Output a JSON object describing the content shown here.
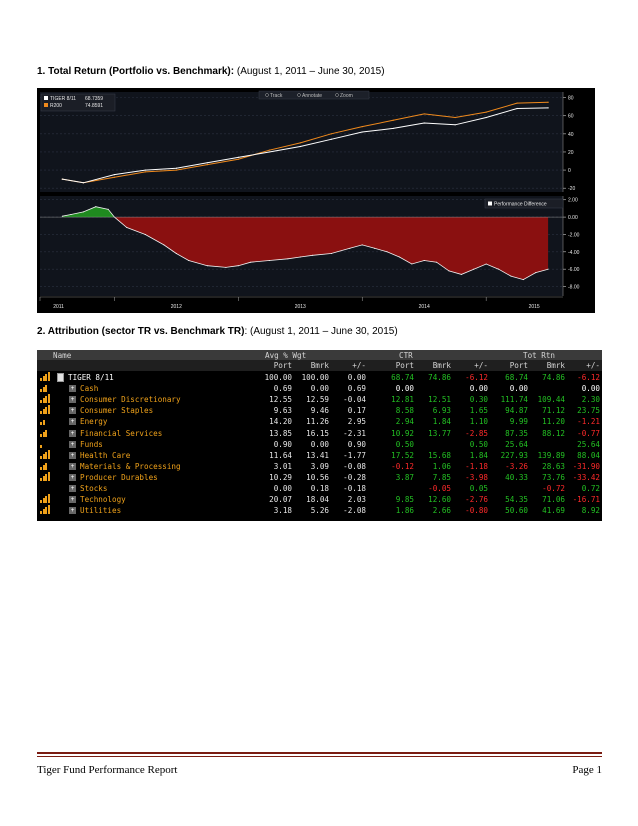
{
  "section1": {
    "number": "1.",
    "title": "Total Return (Portfolio vs. Benchmark):",
    "period": "(August 1, 2011 – June 30, 2015)"
  },
  "section2": {
    "number": "2",
    "title": ". Attribution (sector TR vs. Benchmark TR)",
    "period": ": (August 1, 2011 – June 30, 2015)"
  },
  "chart_data": [
    {
      "type": "line",
      "legend": [
        {
          "name": "TIGER 8/11",
          "value": "68.7359",
          "color": "#ffffff"
        },
        {
          "name": "R200",
          "value": "74.8591",
          "color": "#f08a1c"
        }
      ],
      "toolbar": [
        "Track",
        "Annotate",
        "Zoom"
      ],
      "x_ticks": [
        "2011",
        "2012",
        "2013",
        "2014",
        "2015"
      ],
      "y_ticks": [
        "80",
        "60",
        "40",
        "20",
        "0",
        "-20"
      ],
      "ylim": [
        -22,
        84
      ],
      "x": [
        2011.58,
        2011.75,
        2012.0,
        2012.25,
        2012.5,
        2012.75,
        2013.0,
        2013.25,
        2013.5,
        2013.75,
        2014.0,
        2014.25,
        2014.5,
        2014.75,
        2015.0,
        2015.25,
        2015.5
      ],
      "series": [
        {
          "name": "TIGER 8/11",
          "values": [
            -10,
            -14,
            -5,
            0,
            2,
            8,
            14,
            20,
            26,
            34,
            42,
            46,
            52,
            50,
            58,
            68,
            68.7
          ]
        },
        {
          "name": "R200",
          "values": [
            -10,
            -14,
            -8,
            -2,
            0,
            6,
            12,
            22,
            30,
            40,
            48,
            55,
            62,
            58,
            64,
            74,
            74.9
          ]
        }
      ]
    },
    {
      "type": "area",
      "legend": [
        {
          "name": "Performance Difference",
          "color": "#ffffff"
        }
      ],
      "y_ticks": [
        "2.00",
        "0.00",
        "-2.00",
        "-4.00",
        "-6.00",
        "-8.00"
      ],
      "ylim": [
        -8.4,
        2.2
      ],
      "x": [
        2011.58,
        2011.65,
        2011.75,
        2011.85,
        2011.95,
        2012.0,
        2012.1,
        2012.25,
        2012.4,
        2012.5,
        2012.6,
        2012.75,
        2012.9,
        2013.0,
        2013.1,
        2013.25,
        2013.4,
        2013.5,
        2013.6,
        2013.75,
        2013.9,
        2014.0,
        2014.1,
        2014.2,
        2014.3,
        2014.4,
        2014.5,
        2014.6,
        2014.7,
        2014.8,
        2014.9,
        2015.0,
        2015.1,
        2015.2,
        2015.3,
        2015.4,
        2015.5
      ],
      "values": [
        0.1,
        0.3,
        0.6,
        1.2,
        0.9,
        0.0,
        -1.2,
        -2.0,
        -3.2,
        -4.2,
        -5.0,
        -5.6,
        -5.8,
        -5.6,
        -5.2,
        -5.0,
        -4.8,
        -4.6,
        -4.4,
        -4.2,
        -3.6,
        -3.2,
        -3.6,
        -4.0,
        -4.6,
        -5.4,
        -5.0,
        -5.2,
        -6.2,
        -6.6,
        -6.0,
        -5.4,
        -6.0,
        -6.8,
        -7.2,
        -6.4,
        -6.0
      ]
    }
  ],
  "table": {
    "group_headers": [
      "Name",
      "Avg % Wgt",
      "CTR",
      "Tot Rtn"
    ],
    "sub_headers": [
      "Port",
      "Bmrk",
      "+/-",
      "Port",
      "Bmrk",
      "+/-",
      "Port",
      "Bmrk",
      "+/-"
    ],
    "rows": [
      {
        "name": "TIGER 8/11",
        "bars": 4,
        "top": true,
        "vals": [
          "100.00",
          "100.00",
          "0.00",
          "68.74",
          "74.86",
          "-6.12",
          "68.74",
          "74.86",
          "-6.12"
        ]
      },
      {
        "name": "Cash",
        "bars": 3,
        "vals": [
          "0.69",
          "0.00",
          "0.69",
          "0.00",
          "",
          "0.00",
          "0.00",
          "",
          "0.00"
        ]
      },
      {
        "name": "Consumer Discretionary",
        "bars": 4,
        "vals": [
          "12.55",
          "12.59",
          "-0.04",
          "12.81",
          "12.51",
          "0.30",
          "111.74",
          "109.44",
          "2.30"
        ]
      },
      {
        "name": "Consumer Staples",
        "bars": 4,
        "vals": [
          "9.63",
          "9.46",
          "0.17",
          "8.58",
          "6.93",
          "1.65",
          "94.87",
          "71.12",
          "23.75"
        ]
      },
      {
        "name": "Energy",
        "bars": 2,
        "vals": [
          "14.20",
          "11.26",
          "2.95",
          "2.94",
          "1.84",
          "1.10",
          "9.99",
          "11.20",
          "-1.21"
        ]
      },
      {
        "name": "Financial Services",
        "bars": 3,
        "vals": [
          "13.85",
          "16.15",
          "-2.31",
          "10.92",
          "13.77",
          "-2.85",
          "87.35",
          "88.12",
          "-0.77"
        ]
      },
      {
        "name": "Funds",
        "bars": 1,
        "vals": [
          "0.90",
          "0.00",
          "0.90",
          "0.50",
          "",
          "0.50",
          "25.64",
          "",
          "25.64"
        ]
      },
      {
        "name": "Health Care",
        "bars": 4,
        "vals": [
          "11.64",
          "13.41",
          "-1.77",
          "17.52",
          "15.68",
          "1.84",
          "227.93",
          "139.89",
          "88.04"
        ]
      },
      {
        "name": "Materials & Processing",
        "bars": 3,
        "vals": [
          "3.01",
          "3.09",
          "-0.08",
          "-0.12",
          "1.06",
          "-1.18",
          "-3.26",
          "28.63",
          "-31.90"
        ]
      },
      {
        "name": "Producer Durables",
        "bars": 4,
        "vals": [
          "10.29",
          "10.56",
          "-0.28",
          "3.87",
          "7.85",
          "-3.98",
          "40.33",
          "73.76",
          "-33.42"
        ]
      },
      {
        "name": "Stocks",
        "bars": 0,
        "vals": [
          "0.00",
          "0.18",
          "-0.18",
          "",
          "-0.05",
          "0.05",
          "",
          "-0.72",
          "0.72"
        ]
      },
      {
        "name": "Technology",
        "bars": 4,
        "vals": [
          "20.07",
          "18.04",
          "2.03",
          "9.85",
          "12.60",
          "-2.76",
          "54.35",
          "71.06",
          "-16.71"
        ]
      },
      {
        "name": "Utilities",
        "bars": 4,
        "vals": [
          "3.18",
          "5.26",
          "-2.08",
          "1.86",
          "2.66",
          "-0.80",
          "50.60",
          "41.69",
          "8.92"
        ]
      }
    ]
  },
  "footer": {
    "left": "Tiger Fund Performance Report",
    "right": "Page 1"
  }
}
